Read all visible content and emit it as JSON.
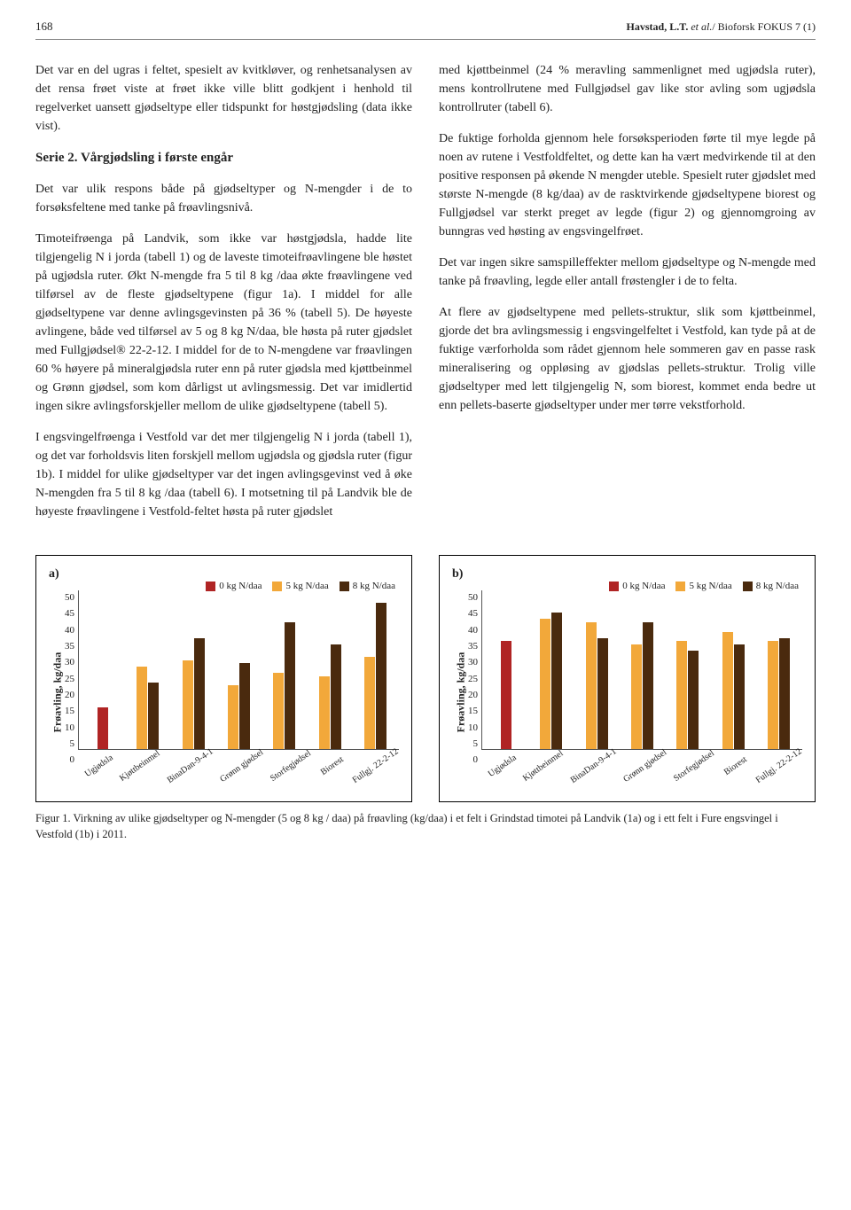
{
  "page_number": "168",
  "header_citation_bold": "Havstad, L.T. ",
  "header_citation_ital": "et al.",
  "header_citation_rest": "/ Bioforsk FOKUS 7 (1)",
  "left_column": {
    "p1": "Det var en del ugras i feltet, spesielt av kvitkløver, og renhetsanalysen av det rensa frøet viste at frøet ikke ville blitt godkjent i henhold til regelverket uansett gjødseltype eller tidspunkt for høstgjødsling (data ikke vist).",
    "heading": "Serie 2. Vårgjødsling i første engår",
    "p2": "Det var ulik respons både på gjødseltyper og N-mengder i de to forsøksfeltene med tanke på frøavlingsnivå.",
    "p3": "Timoteifrøenga på Landvik, som ikke var høstgjødsla, hadde lite tilgjengelig N i jorda (tabell 1) og de laveste timoteifrøavlingene ble høstet på ugjødsla ruter. Økt N-mengde fra 5 til 8 kg /daa økte frøavlingene ved tilførsel av de fleste gjødseltypene (figur 1a). I middel for alle gjødseltypene var denne avlingsgevinsten på 36 % (tabell 5). De høyeste avlingene, både ved tilførsel av 5 og 8 kg N/daa, ble høsta på ruter gjødslet med Fullgjødsel® 22-2-12. I middel for de to N-mengdene var frøavlingen 60 % høyere på mineralgjødsla ruter enn på ruter gjødsla med kjøttbeinmel og Grønn gjødsel, som kom dårligst ut avlingsmessig. Det var imidlertid ingen sikre avlingsforskjeller mellom de ulike gjødseltypene (tabell 5).",
    "p4": "I engsvingelfrøenga i Vestfold var det mer tilgjengelig N i jorda (tabell 1), og det var forholdsvis liten forskjell mellom ugjødsla og gjødsla ruter (figur 1b). I middel for ulike gjødseltyper var det ingen avlingsgevinst ved å øke N-mengden fra 5 til 8 kg /daa (tabell 6). I motsetning til på Landvik ble de høyeste frøavlingene i Vestfold-feltet høsta på ruter gjødslet"
  },
  "right_column": {
    "p1": "med kjøttbeinmel (24 % meravling sammenlignet med ugjødsla ruter), mens kontrollrutene med Fullgjødsel gav like stor avling som ugjødsla kontrollruter (tabell 6).",
    "p2": "De fuktige forholda gjennom hele forsøksperioden førte til mye legde på noen av rutene i Vestfoldfeltet, og dette kan ha vært medvirkende til at den positive responsen på økende N mengder uteble. Spesielt ruter gjødslet med største N-mengde (8 kg/daa) av de rasktvirkende gjødseltypene biorest og Fullgjødsel var sterkt preget av legde (figur 2) og gjennomgroing av bunngras ved høsting av engsvingelfrøet.",
    "p3": "Det var ingen sikre samspilleffekter mellom gjødseltype og N-mengde med tanke på frøavling, legde eller antall frøstengler i de to felta.",
    "p4": "At flere av gjødseltypene med pellets-struktur, slik som kjøttbeinmel, gjorde det bra avlingsmessig i engsvingelfeltet i Vestfold, kan tyde på at de fuktige værforholda som rådet gjennom hele sommeren gav en passe rask mineralisering og oppløsing av gjødslas pellets-struktur. Trolig ville gjødseltyper med lett tilgjengelig N, som biorest, kommet enda bedre ut enn pellets-baserte gjødseltyper under mer tørre vekstforhold."
  },
  "chart_common": {
    "ylabel": "Frøavling, kg/daa",
    "ylim": [
      0,
      50
    ],
    "yticks": [
      50,
      45,
      40,
      35,
      30,
      25,
      20,
      15,
      10,
      5,
      0
    ],
    "categories": [
      "Ugjødsla",
      "Kjøttbeinmel",
      "BinaDan-9-4-1",
      "Grønn gjødsel",
      "Storfegjødsel",
      "Biorest",
      "Fullgj. 22-2-12"
    ],
    "series_labels": [
      "0 kg N/daa",
      "5 kg N/daa",
      "8 kg N/daa"
    ],
    "series_colors": [
      "#b02424",
      "#f2a83a",
      "#4a2a0e"
    ]
  },
  "chart_a": {
    "label": "a)",
    "data": [
      [
        13,
        null,
        null
      ],
      [
        null,
        26,
        21
      ],
      [
        null,
        28,
        35
      ],
      [
        null,
        20,
        27
      ],
      [
        null,
        24,
        40
      ],
      [
        null,
        23,
        33
      ],
      [
        null,
        29,
        46
      ]
    ]
  },
  "chart_b": {
    "label": "b)",
    "data": [
      [
        34,
        null,
        null
      ],
      [
        null,
        41,
        43
      ],
      [
        null,
        40,
        35
      ],
      [
        null,
        33,
        40
      ],
      [
        null,
        34,
        31
      ],
      [
        null,
        37,
        33
      ],
      [
        null,
        34,
        35
      ]
    ]
  },
  "caption": "Figur 1. Virkning av ulike gjødseltyper og N-mengder (5 og 8 kg / daa) på frøavling (kg/daa) i et felt i Grindstad timotei på Landvik (1a) og i ett felt i Fure engsvingel i Vestfold (1b) i 2011."
}
